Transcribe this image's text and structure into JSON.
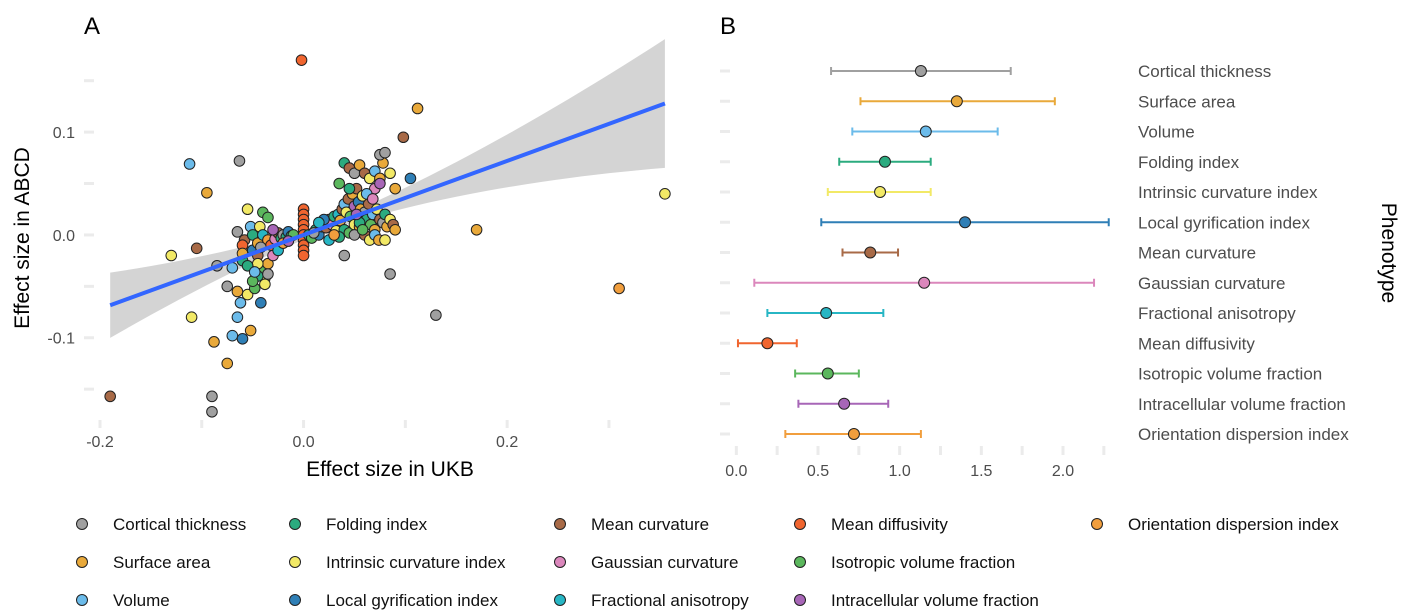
{
  "phenotypes": [
    {
      "name": "Cortical thickness",
      "color": "#a0a0a0"
    },
    {
      "name": "Surface area",
      "color": "#e9a93a"
    },
    {
      "name": "Volume",
      "color": "#6bbbea"
    },
    {
      "name": "Folding index",
      "color": "#2bab7f"
    },
    {
      "name": "Intrinsic curvature index",
      "color": "#f2e966"
    },
    {
      "name": "Local gyrification index",
      "color": "#2f7fb6"
    },
    {
      "name": "Mean curvature",
      "color": "#a86a47"
    },
    {
      "name": "Gaussian curvature",
      "color": "#db87bc"
    },
    {
      "name": "Fractional anisotropy",
      "color": "#27b6c4"
    },
    {
      "name": "Mean diffusivity",
      "color": "#f0652f"
    },
    {
      "name": "Isotropic volume fraction",
      "color": "#5bb75d"
    },
    {
      "name": "Intracellular volume fraction",
      "color": "#a766b7"
    },
    {
      "name": "Orientation dispersion index",
      "color": "#f19e3d"
    }
  ],
  "chart_data": [
    {
      "type": "scatter",
      "panel_label": "A",
      "xlabel": "Effect size in UKB",
      "ylabel": "Effect size in ABCD",
      "xlim": [
        -0.2,
        0.36
      ],
      "ylim": [
        -0.18,
        0.175
      ],
      "x_ticks": [
        -0.2,
        0.0,
        0.2
      ],
      "x_tick_labels": [
        "-0.2",
        "0.0",
        "0.2"
      ],
      "y_ticks": [
        -0.1,
        0.0,
        0.1
      ],
      "y_tick_labels": [
        "-0.1",
        "0.0",
        "0.1"
      ],
      "regression": {
        "color": "#3366ff",
        "intercept": 0.0,
        "slope": 0.36
      },
      "points": [
        [
          -0.19,
          -0.157,
          6
        ],
        [
          -0.09,
          -0.157,
          0
        ],
        [
          -0.09,
          -0.172,
          0
        ],
        [
          -0.002,
          0.17,
          9
        ],
        [
          -0.112,
          0.069,
          2
        ],
        [
          -0.063,
          0.072,
          0
        ],
        [
          -0.095,
          0.041,
          1
        ],
        [
          -0.13,
          -0.02,
          4
        ],
        [
          -0.105,
          -0.013,
          6
        ],
        [
          -0.11,
          -0.08,
          4
        ],
        [
          -0.088,
          -0.104,
          1
        ],
        [
          -0.075,
          -0.125,
          1
        ],
        [
          -0.07,
          -0.098,
          2
        ],
        [
          -0.06,
          -0.101,
          5
        ],
        [
          -0.052,
          -0.093,
          1
        ],
        [
          -0.065,
          -0.08,
          2
        ],
        [
          -0.062,
          -0.066,
          2
        ],
        [
          -0.042,
          -0.066,
          5
        ],
        [
          -0.075,
          -0.05,
          0
        ],
        [
          -0.065,
          -0.055,
          1
        ],
        [
          -0.055,
          -0.058,
          4
        ],
        [
          -0.048,
          -0.052,
          10
        ],
        [
          -0.085,
          -0.03,
          0
        ],
        [
          -0.07,
          -0.032,
          2
        ],
        [
          -0.06,
          -0.025,
          3
        ],
        [
          -0.05,
          -0.015,
          5
        ],
        [
          -0.045,
          -0.02,
          6
        ],
        [
          -0.04,
          -0.035,
          10
        ],
        [
          -0.038,
          -0.042,
          4
        ],
        [
          -0.035,
          -0.028,
          1
        ],
        [
          -0.03,
          -0.02,
          7
        ],
        [
          -0.052,
          0.008,
          2
        ],
        [
          -0.043,
          0.008,
          4
        ],
        [
          -0.055,
          0.025,
          4
        ],
        [
          -0.04,
          0.022,
          10
        ],
        [
          -0.035,
          0.017,
          10
        ],
        [
          -0.065,
          0.003,
          0
        ],
        [
          -0.058,
          -0.005,
          6
        ],
        [
          -0.05,
          0.0,
          3
        ],
        [
          -0.045,
          -0.008,
          1
        ],
        [
          -0.04,
          0.0,
          8
        ],
        [
          -0.035,
          -0.005,
          12
        ],
        [
          -0.032,
          -0.01,
          9
        ],
        [
          -0.028,
          -0.004,
          7
        ],
        [
          -0.025,
          0.002,
          6
        ],
        [
          -0.022,
          -0.003,
          3
        ],
        [
          -0.02,
          0.0,
          0
        ],
        [
          -0.017,
          -0.002,
          3
        ],
        [
          -0.015,
          0.003,
          5
        ],
        [
          -0.012,
          -0.001,
          3
        ],
        [
          -0.01,
          0.0,
          10
        ],
        [
          -0.045,
          -0.04,
          3
        ],
        [
          -0.05,
          -0.045,
          10
        ],
        [
          -0.038,
          -0.048,
          4
        ],
        [
          -0.045,
          -0.028,
          4
        ],
        [
          -0.035,
          -0.038,
          0
        ],
        [
          0.0,
          0.025,
          9
        ],
        [
          0.0,
          0.02,
          9
        ],
        [
          0.0,
          0.015,
          9
        ],
        [
          0.0,
          0.01,
          9
        ],
        [
          0.0,
          0.005,
          9
        ],
        [
          0.0,
          0.0,
          9
        ],
        [
          0.0,
          -0.005,
          9
        ],
        [
          0.0,
          -0.01,
          9
        ],
        [
          0.0,
          -0.015,
          9
        ],
        [
          0.0,
          -0.02,
          9
        ],
        [
          0.005,
          0.0,
          3
        ],
        [
          0.008,
          -0.003,
          10
        ],
        [
          0.012,
          0.005,
          3
        ],
        [
          0.015,
          0.0,
          5
        ],
        [
          0.018,
          0.008,
          10
        ],
        [
          0.02,
          0.012,
          2
        ],
        [
          0.022,
          0.007,
          6
        ],
        [
          0.025,
          0.015,
          0
        ],
        [
          0.028,
          0.01,
          7
        ],
        [
          0.03,
          0.018,
          3
        ],
        [
          0.032,
          0.004,
          4
        ],
        [
          0.034,
          0.02,
          8
        ],
        [
          0.036,
          0.014,
          1
        ],
        [
          0.038,
          0.025,
          6
        ],
        [
          0.04,
          0.03,
          2
        ],
        [
          0.042,
          0.022,
          4
        ],
        [
          0.044,
          0.035,
          6
        ],
        [
          0.046,
          0.018,
          10
        ],
        [
          0.048,
          0.04,
          1
        ],
        [
          0.05,
          0.028,
          11
        ],
        [
          0.052,
          0.045,
          6
        ],
        [
          0.054,
          0.032,
          5
        ],
        [
          0.056,
          0.025,
          1
        ],
        [
          0.058,
          0.038,
          4
        ],
        [
          0.06,
          0.022,
          0
        ],
        [
          0.062,
          0.015,
          3
        ],
        [
          0.064,
          0.03,
          6
        ],
        [
          0.066,
          0.01,
          10
        ],
        [
          0.068,
          0.02,
          2
        ],
        [
          0.07,
          0.005,
          1
        ],
        [
          0.072,
          0.025,
          4
        ],
        [
          0.075,
          0.015,
          6
        ],
        [
          0.078,
          0.012,
          0
        ],
        [
          0.08,
          0.02,
          3
        ],
        [
          0.082,
          0.008,
          1
        ],
        [
          0.085,
          0.015,
          4
        ],
        [
          0.088,
          0.01,
          6
        ],
        [
          0.09,
          0.005,
          1
        ],
        [
          0.04,
          0.005,
          3
        ],
        [
          0.045,
          0.002,
          10
        ],
        [
          0.05,
          0.01,
          4
        ],
        [
          0.055,
          0.008,
          1
        ],
        [
          0.035,
          -0.002,
          3
        ],
        [
          0.06,
          0.0,
          6
        ],
        [
          0.065,
          -0.005,
          4
        ],
        [
          0.07,
          0.0,
          2
        ],
        [
          0.074,
          -0.005,
          1
        ],
        [
          0.035,
          0.05,
          10
        ],
        [
          0.04,
          0.07,
          3
        ],
        [
          0.045,
          0.065,
          6
        ],
        [
          0.05,
          0.06,
          0
        ],
        [
          0.055,
          0.068,
          1
        ],
        [
          0.06,
          0.06,
          6
        ],
        [
          0.065,
          0.055,
          4
        ],
        [
          0.07,
          0.062,
          2
        ],
        [
          0.075,
          0.055,
          1
        ],
        [
          0.078,
          0.07,
          1
        ],
        [
          0.075,
          0.078,
          0
        ],
        [
          0.08,
          0.08,
          0
        ],
        [
          0.085,
          0.06,
          4
        ],
        [
          0.09,
          0.045,
          1
        ],
        [
          0.098,
          0.095,
          6
        ],
        [
          0.105,
          0.055,
          5
        ],
        [
          0.112,
          0.123,
          1
        ],
        [
          0.07,
          0.045,
          7
        ],
        [
          0.075,
          0.05,
          11
        ],
        [
          0.04,
          -0.02,
          0
        ],
        [
          0.08,
          -0.005,
          4
        ],
        [
          0.085,
          -0.038,
          0
        ],
        [
          0.13,
          -0.078,
          0
        ],
        [
          0.17,
          0.005,
          1
        ],
        [
          0.31,
          -0.052,
          12
        ],
        [
          0.355,
          0.04,
          4
        ],
        [
          0.05,
          0.0,
          0
        ],
        [
          0.055,
          0.012,
          3
        ],
        [
          0.025,
          -0.005,
          8
        ],
        [
          0.03,
          0.0,
          12
        ],
        [
          0.02,
          0.015,
          5
        ],
        [
          0.058,
          0.005,
          10
        ],
        [
          0.062,
          0.04,
          2
        ],
        [
          0.045,
          0.045,
          3
        ],
        [
          0.068,
          0.035,
          7
        ],
        [
          0.052,
          0.02,
          11
        ],
        [
          -0.06,
          -0.01,
          9
        ],
        [
          -0.03,
          0.005,
          11
        ],
        [
          -0.025,
          -0.015,
          8
        ],
        [
          -0.02,
          -0.008,
          12
        ],
        [
          -0.015,
          -0.006,
          11
        ],
        [
          -0.06,
          -0.018,
          1
        ],
        [
          -0.055,
          -0.03,
          3
        ],
        [
          -0.048,
          -0.036,
          2
        ],
        [
          -0.042,
          -0.012,
          0
        ],
        [
          0.01,
          0.002,
          0
        ],
        [
          0.015,
          0.012,
          8
        ]
      ]
    },
    {
      "type": "forest",
      "panel_label": "B",
      "ylabel": "Phenotype",
      "xlim": [
        -0.1,
        2.3
      ],
      "x_ticks": [
        0.0,
        0.5,
        1.0,
        1.5,
        2.0
      ],
      "x_tick_labels": [
        "0.0",
        "0.5",
        "1.0",
        "1.5",
        "2.0"
      ],
      "rows": [
        {
          "label": "Cortical thickness",
          "estimate": 1.13,
          "lower": 0.58,
          "upper": 1.68
        },
        {
          "label": "Surface area",
          "estimate": 1.35,
          "lower": 0.76,
          "upper": 1.95
        },
        {
          "label": "Volume",
          "estimate": 1.16,
          "lower": 0.71,
          "upper": 1.6
        },
        {
          "label": "Folding index",
          "estimate": 0.91,
          "lower": 0.63,
          "upper": 1.19
        },
        {
          "label": "Intrinsic curvature index",
          "estimate": 0.88,
          "lower": 0.56,
          "upper": 1.19
        },
        {
          "label": "Local gyrification index",
          "estimate": 1.4,
          "lower": 0.52,
          "upper": 2.28
        },
        {
          "label": "Mean curvature",
          "estimate": 0.82,
          "lower": 0.65,
          "upper": 0.99
        },
        {
          "label": "Gaussian curvature",
          "estimate": 1.15,
          "lower": 0.11,
          "upper": 2.19
        },
        {
          "label": "Fractional anisotropy",
          "estimate": 0.55,
          "lower": 0.19,
          "upper": 0.9
        },
        {
          "label": "Mean diffusivity",
          "estimate": 0.19,
          "lower": 0.01,
          "upper": 0.37
        },
        {
          "label": "Isotropic volume fraction",
          "estimate": 0.56,
          "lower": 0.36,
          "upper": 0.75
        },
        {
          "label": "Intracellular volume fraction",
          "estimate": 0.66,
          "lower": 0.38,
          "upper": 0.93
        },
        {
          "label": "Orientation dispersion index",
          "estimate": 0.72,
          "lower": 0.3,
          "upper": 1.13
        }
      ]
    }
  ]
}
